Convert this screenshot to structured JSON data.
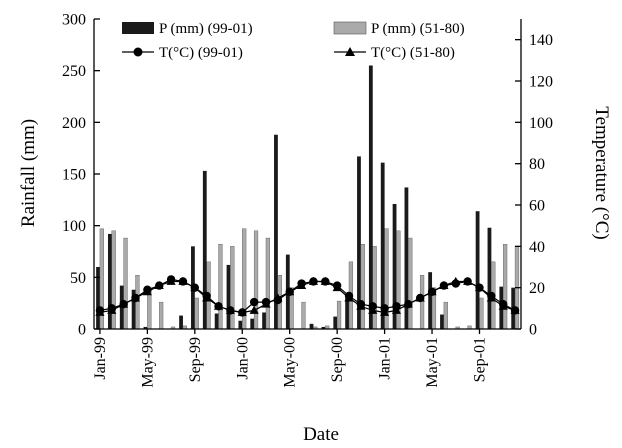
{
  "chart_data": {
    "type": "bar+line",
    "xlabel": "Date",
    "ylabel_left": "Rainfall (mm)",
    "ylabel_right": "Temperature (°C)",
    "y_left_range": [
      0,
      300
    ],
    "y_left_ticks": [
      "0",
      "50",
      "100",
      "150",
      "200",
      "250",
      "300"
    ],
    "y_right_range": [
      0,
      150
    ],
    "y_right_ticks": [
      "0",
      "20",
      "40",
      "60",
      "80",
      "100",
      "120",
      "140"
    ],
    "x_tick_labels": [
      "Jan-99",
      "May-99",
      "Sep-99",
      "Jan-00",
      "May-00",
      "Sep-00",
      "Jan-01",
      "May-01",
      "Sep-01"
    ],
    "x_tick_month_index": [
      0,
      4,
      8,
      12,
      16,
      20,
      24,
      28,
      32
    ],
    "months": [
      "Jan-99",
      "Feb-99",
      "Mar-99",
      "Apr-99",
      "May-99",
      "Jun-99",
      "Jul-99",
      "Aug-99",
      "Sep-99",
      "Oct-99",
      "Nov-99",
      "Dec-99",
      "Jan-00",
      "Feb-00",
      "Mar-00",
      "Apr-00",
      "May-00",
      "Jun-00",
      "Jul-00",
      "Aug-00",
      "Sep-00",
      "Oct-00",
      "Nov-00",
      "Dec-00",
      "Jan-01",
      "Feb-01",
      "Mar-01",
      "Apr-01",
      "May-01",
      "Jun-01",
      "Jul-01",
      "Aug-01",
      "Sep-01",
      "Oct-01",
      "Nov-01",
      "Dec-01"
    ],
    "grid": false,
    "legend_position": "top",
    "series": [
      {
        "name": "P (mm) (99-01)",
        "kind": "bar",
        "axis": "left",
        "color": "#1a1a1a",
        "values": [
          60,
          92,
          42,
          38,
          2,
          0,
          0,
          13,
          80,
          153,
          15,
          62,
          8,
          10,
          16,
          188,
          72,
          0,
          5,
          2,
          12,
          30,
          167,
          255,
          161,
          121,
          137,
          0,
          55,
          14,
          0,
          0,
          114,
          98,
          41,
          40
        ]
      },
      {
        "name": "P (mm) (51-80)",
        "kind": "bar",
        "axis": "left",
        "color": "#aaaaaa",
        "values": [
          97,
          95,
          88,
          52,
          40,
          26,
          2,
          3,
          30,
          65,
          82,
          80,
          97,
          95,
          88,
          52,
          40,
          26,
          2,
          3,
          27,
          65,
          82,
          80,
          97,
          95,
          88,
          52,
          40,
          26,
          2,
          3,
          30,
          65,
          82,
          80
        ]
      },
      {
        "name": "T(°C) (99-01)",
        "kind": "line",
        "marker": "circle",
        "axis": "right",
        "values": [
          9,
          10,
          12,
          15,
          19,
          21,
          24,
          23,
          20,
          16,
          11,
          9,
          8,
          13,
          13,
          14,
          18,
          22,
          23,
          23,
          21,
          16,
          12,
          11,
          10,
          11,
          12,
          15,
          18,
          21,
          22,
          23,
          20,
          16,
          12,
          9
        ]
      },
      {
        "name": "T(°C) (51-80)",
        "kind": "line",
        "marker": "triangle",
        "axis": "right",
        "values": [
          8,
          9,
          12,
          15,
          18,
          21,
          23,
          23,
          20,
          15,
          11,
          9,
          8,
          9,
          12,
          15,
          18,
          21,
          23,
          23,
          20,
          15,
          11,
          9,
          8,
          9,
          12,
          15,
          18,
          21,
          23,
          23,
          20,
          15,
          11,
          9
        ]
      }
    ]
  }
}
